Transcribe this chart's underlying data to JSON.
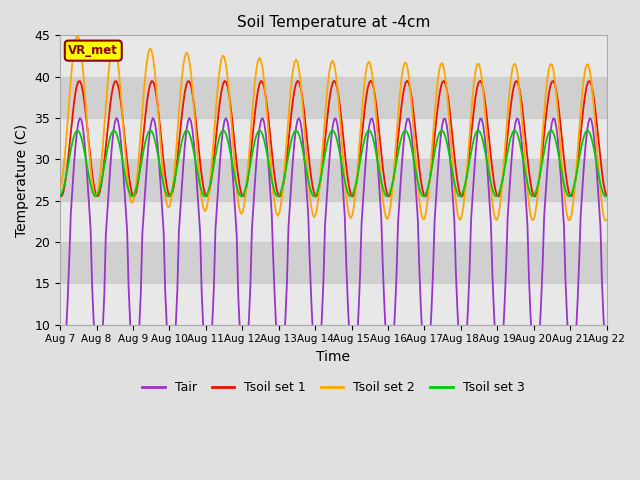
{
  "title": "Soil Temperature at -4cm",
  "xlabel": "Time",
  "ylabel": "Temperature (C)",
  "ylim": [
    10,
    45
  ],
  "tick_labels": [
    "Aug 7",
    "Aug 8",
    "Aug 9",
    "Aug 10",
    "Aug 11",
    "Aug 12",
    "Aug 13",
    "Aug 14",
    "Aug 15",
    "Aug 16",
    "Aug 17",
    "Aug 18",
    "Aug 19",
    "Aug 20",
    "Aug 21",
    "Aug 22"
  ],
  "label_box_text": "VR_met",
  "label_box_facecolor": "#FFFF00",
  "label_box_edgecolor": "#8B0000",
  "color_tair": "#9933CC",
  "color_soil1": "#EE1100",
  "color_soil2": "#FFA500",
  "color_soil3": "#00CC00",
  "legend_labels": [
    "Tair",
    "Tsoil set 1",
    "Tsoil set 2",
    "Tsoil set 3"
  ],
  "bg_color": "#E0E0E0",
  "plot_bg_color": "#FFFFFF",
  "band_color1": "#E8E8E8",
  "band_color2": "#D0D0D0",
  "grid_color": "#CCCCCC",
  "linewidth": 1.3,
  "yticks": [
    10,
    15,
    20,
    25,
    30,
    35,
    40,
    45
  ],
  "figsize": [
    6.4,
    4.8
  ],
  "dpi": 100
}
